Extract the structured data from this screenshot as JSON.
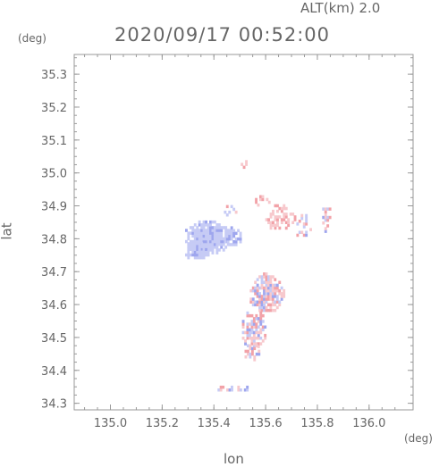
{
  "header": {
    "alt_label": "ALT(km) 2.0",
    "timestamp": "2020/09/17 00:52:00"
  },
  "chart_data": {
    "type": "heatmap",
    "title": "2020/09/17 00:52:00",
    "subtitle": "ALT(km) 2.0",
    "xlabel": "lon",
    "ylabel": "lat",
    "x_unit": "(deg)",
    "y_unit": "(deg)",
    "xlim": [
      134.86,
      136.17
    ],
    "ylim": [
      34.28,
      35.36
    ],
    "xticks": [
      "135.0",
      "135.2",
      "135.4",
      "135.6",
      "135.8",
      "136.0"
    ],
    "yticks": [
      "34.3",
      "34.4",
      "34.5",
      "34.6",
      "34.7",
      "34.8",
      "34.9",
      "35.0",
      "35.1",
      "35.2",
      "35.3"
    ],
    "grid": false,
    "colors": {
      "positive": "#f2a2a8",
      "negative": "#9ea6ee",
      "axis": "#999999",
      "text": "#666666"
    },
    "regions": [
      {
        "lon": 135.37,
        "lat": 34.8,
        "r_lon": 0.09,
        "r_lat": 0.055,
        "sign": -1,
        "density": 0.95
      },
      {
        "lon": 135.33,
        "lat": 34.76,
        "r_lon": 0.05,
        "r_lat": 0.03,
        "sign": -1,
        "density": 0.9
      },
      {
        "lon": 135.47,
        "lat": 34.8,
        "r_lon": 0.04,
        "r_lat": 0.03,
        "sign": -1,
        "density": 0.6
      },
      {
        "lon": 135.6,
        "lat": 34.63,
        "r_lon": 0.07,
        "r_lat": 0.06,
        "sign": 0,
        "density": 0.8
      },
      {
        "lon": 135.55,
        "lat": 34.52,
        "r_lon": 0.05,
        "r_lat": 0.06,
        "sign": 0,
        "density": 0.7
      },
      {
        "lon": 135.54,
        "lat": 34.45,
        "r_lon": 0.03,
        "r_lat": 0.03,
        "sign": 0,
        "density": 0.6
      },
      {
        "lon": 135.65,
        "lat": 34.86,
        "r_lon": 0.06,
        "r_lat": 0.04,
        "sign": 1,
        "density": 0.45
      },
      {
        "lon": 135.58,
        "lat": 34.91,
        "r_lon": 0.03,
        "r_lat": 0.02,
        "sign": 1,
        "density": 0.5
      },
      {
        "lon": 135.75,
        "lat": 34.83,
        "r_lon": 0.04,
        "r_lat": 0.04,
        "sign": 0,
        "density": 0.35
      },
      {
        "lon": 135.83,
        "lat": 34.86,
        "r_lon": 0.02,
        "r_lat": 0.05,
        "sign": 0,
        "density": 0.5
      },
      {
        "lon": 135.51,
        "lat": 35.02,
        "r_lon": 0.015,
        "r_lat": 0.015,
        "sign": 1,
        "density": 0.6
      },
      {
        "lon": 135.46,
        "lat": 34.88,
        "r_lon": 0.03,
        "r_lat": 0.02,
        "sign": 0,
        "density": 0.35
      },
      {
        "lon": 135.46,
        "lat": 34.34,
        "r_lon": 0.08,
        "r_lat": 0.012,
        "sign": 0,
        "density": 0.3
      }
    ]
  }
}
